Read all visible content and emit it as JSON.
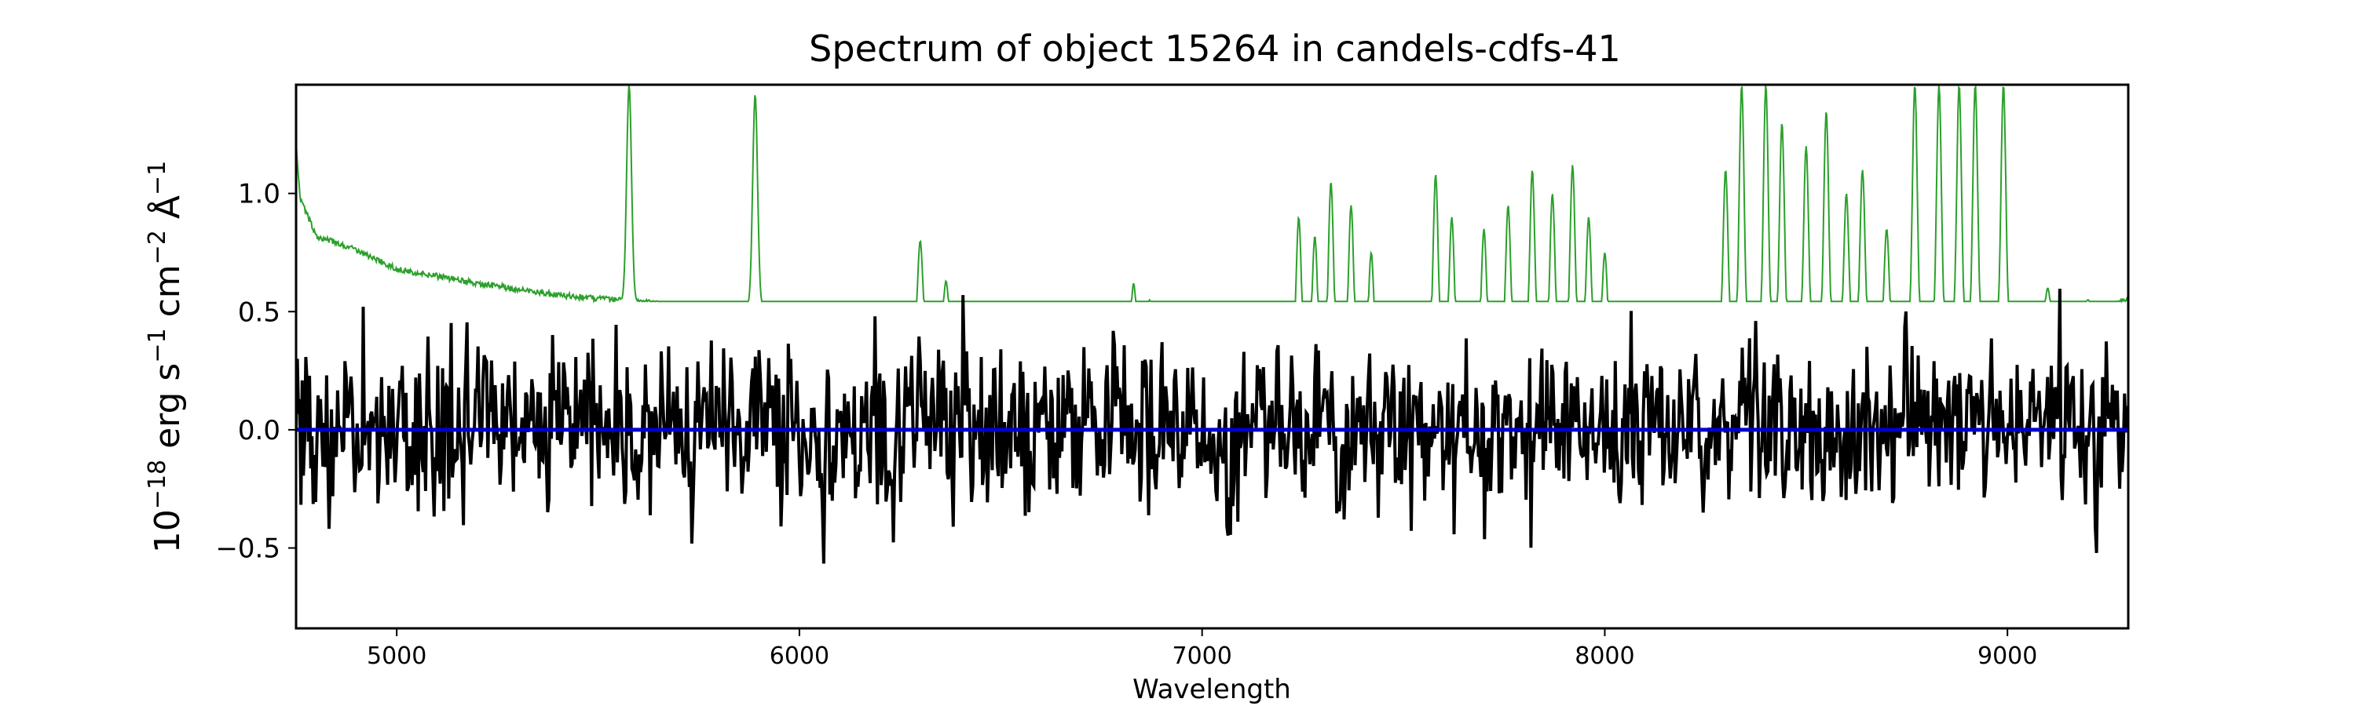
{
  "chart_data": {
    "type": "line",
    "title": "Spectrum of object 15264 in candels-cdfs-41",
    "xlabel": "Wavelength",
    "ylabel_parts": {
      "base": "10",
      "exp1": "−18",
      "erg": " erg s",
      "exp2": "−1",
      "cm": " cm",
      "exp3": "−2",
      "ang": " Å",
      "exp4": "−1"
    },
    "xlim": [
      4750,
      9300
    ],
    "ylim": [
      -0.84,
      1.46
    ],
    "x_ticks": [
      5000,
      6000,
      7000,
      8000,
      9000
    ],
    "x_tick_labels": [
      "5000",
      "6000",
      "7000",
      "8000",
      "9000"
    ],
    "y_ticks": [
      -0.5,
      0.0,
      0.5,
      1.0
    ],
    "y_tick_labels": [
      "−0.5",
      "0.0",
      "0.5",
      "1.0"
    ],
    "grid": false,
    "colors": {
      "flux": "#000000",
      "error": "#2ca02c",
      "zero_line": "#0000cc"
    },
    "series": [
      {
        "key": "error",
        "kind": "noise_level",
        "continuum": [
          [
            4750,
            1.22
          ],
          [
            4760,
            0.98
          ],
          [
            4800,
            0.82
          ],
          [
            4900,
            0.76
          ],
          [
            5000,
            0.68
          ],
          [
            5200,
            0.62
          ],
          [
            5400,
            0.57
          ],
          [
            5600,
            0.54
          ],
          [
            5800,
            0.52
          ],
          [
            5900,
            0.52
          ],
          [
            6000,
            0.47
          ],
          [
            6200,
            0.42
          ],
          [
            6400,
            0.39
          ],
          [
            6600,
            0.37
          ],
          [
            6800,
            0.34
          ],
          [
            7000,
            0.32
          ],
          [
            7200,
            0.31
          ],
          [
            7500,
            0.32
          ],
          [
            8000,
            0.35
          ],
          [
            8500,
            0.37
          ],
          [
            9000,
            0.39
          ],
          [
            9300,
            0.55
          ]
        ],
        "peaks": [
          [
            5577,
            1.46
          ],
          [
            5890,
            1.42
          ],
          [
            6300,
            0.8
          ],
          [
            6364,
            0.63
          ],
          [
            6230,
            0.52
          ],
          [
            6500,
            0.48
          ],
          [
            6830,
            0.62
          ],
          [
            6870,
            0.55
          ],
          [
            7240,
            0.9
          ],
          [
            7280,
            0.82
          ],
          [
            7320,
            1.05
          ],
          [
            7370,
            0.95
          ],
          [
            7420,
            0.75
          ],
          [
            7580,
            1.08
          ],
          [
            7620,
            0.9
          ],
          [
            7700,
            0.85
          ],
          [
            7760,
            0.95
          ],
          [
            7820,
            1.1
          ],
          [
            7870,
            1.0
          ],
          [
            7920,
            1.12
          ],
          [
            7960,
            0.9
          ],
          [
            8000,
            0.75
          ],
          [
            8300,
            1.1
          ],
          [
            8340,
            1.46
          ],
          [
            8400,
            1.46
          ],
          [
            8440,
            1.3
          ],
          [
            8500,
            1.2
          ],
          [
            8550,
            1.35
          ],
          [
            8600,
            1.0
          ],
          [
            8640,
            1.1
          ],
          [
            8700,
            0.85
          ],
          [
            8770,
            1.46
          ],
          [
            8830,
            1.46
          ],
          [
            8880,
            1.46
          ],
          [
            8920,
            1.46
          ],
          [
            8990,
            1.46
          ],
          [
            9100,
            0.6
          ],
          [
            9200,
            0.55
          ]
        ]
      },
      {
        "key": "flux",
        "kind": "noisy_spectrum",
        "seed": 15264,
        "sigma": 0.2,
        "n_samples": 1500
      }
    ]
  }
}
